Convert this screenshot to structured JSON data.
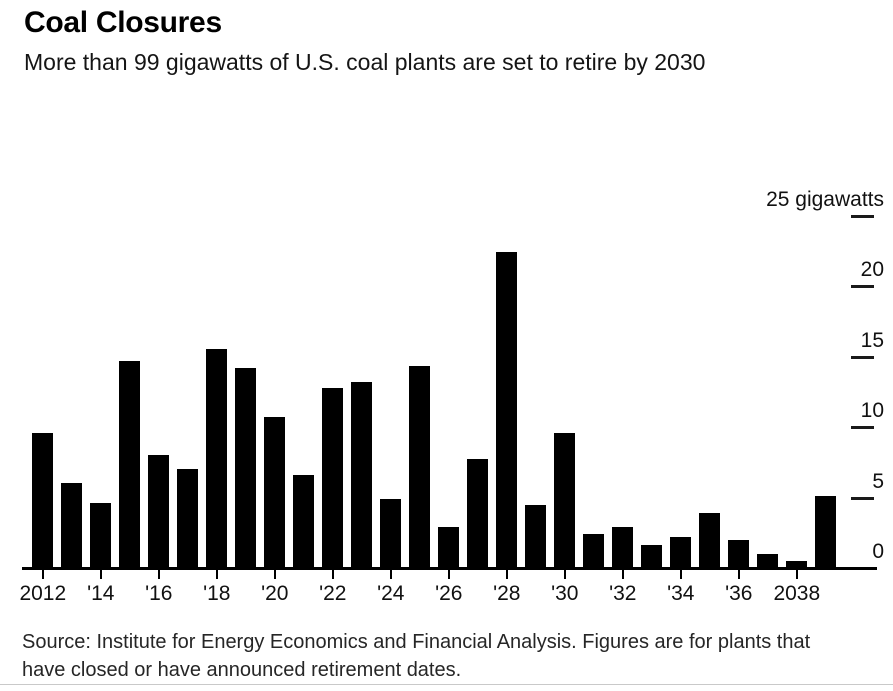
{
  "chart_data": {
    "type": "bar",
    "title": "Coal Closures",
    "subtitle": "More than 99 gigawatts of U.S. coal plants are set to retire by 2030",
    "categories": [
      2012,
      2013,
      2014,
      2015,
      2016,
      2017,
      2018,
      2019,
      2020,
      2021,
      2022,
      2023,
      2024,
      2025,
      2026,
      2027,
      2028,
      2029,
      2030,
      2031,
      2032,
      2033,
      2034,
      2035,
      2036,
      2037,
      2038,
      2039
    ],
    "values": [
      9.6,
      6.0,
      4.6,
      14.7,
      8.0,
      7.0,
      15.5,
      14.2,
      10.7,
      6.6,
      12.8,
      13.2,
      4.9,
      14.3,
      2.9,
      7.7,
      22.4,
      4.5,
      9.6,
      2.4,
      2.9,
      1.6,
      2.2,
      3.9,
      2.0,
      1.0,
      0.5,
      5.1
    ],
    "unit": "gigawatts",
    "ylim": [
      0,
      25
    ],
    "yticks": [
      0,
      5,
      10,
      15,
      20,
      25
    ],
    "ytick_labels": [
      "0",
      "5",
      "10",
      "15",
      "20",
      "25 gigawatts"
    ],
    "xtick_years": [
      2012,
      2014,
      2016,
      2018,
      2020,
      2022,
      2024,
      2026,
      2028,
      2030,
      2032,
      2034,
      2036,
      2038
    ],
    "xtick_labels": [
      "2012",
      "'14",
      "'16",
      "'18",
      "'20",
      "'22",
      "'24",
      "'26",
      "'28",
      "'30",
      "'32",
      "'34",
      "'36",
      "2038"
    ],
    "bar_color": "#000000",
    "grid": false,
    "legend_position": "none",
    "ytick_side": "right",
    "source_note": "Source: Institute for Energy Economics and Financial Analysis. Figures are for plants that have closed or have announced retirement dates."
  }
}
